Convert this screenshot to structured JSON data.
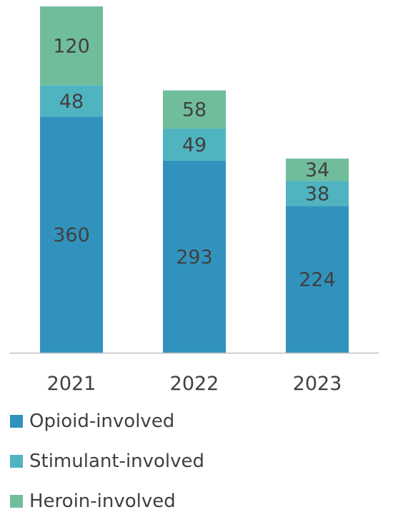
{
  "chart_data": {
    "type": "bar",
    "stacked": true,
    "categories": [
      "2021",
      "2022",
      "2023"
    ],
    "series": [
      {
        "name": "Opioid-involved",
        "values": [
          360,
          293,
          224
        ],
        "color": "#3193bd"
      },
      {
        "name": "Stimulant-involved",
        "values": [
          48,
          49,
          38
        ],
        "color": "#4fb4c0"
      },
      {
        "name": "Heroin-involved",
        "values": [
          120,
          58,
          34
        ],
        "color": "#70bd9c"
      }
    ],
    "title": "",
    "xlabel": "",
    "ylabel": "",
    "ylim": [
      0,
      528
    ],
    "grid": false,
    "legend_position": "bottom",
    "axis_color": "#bfbfbf"
  }
}
